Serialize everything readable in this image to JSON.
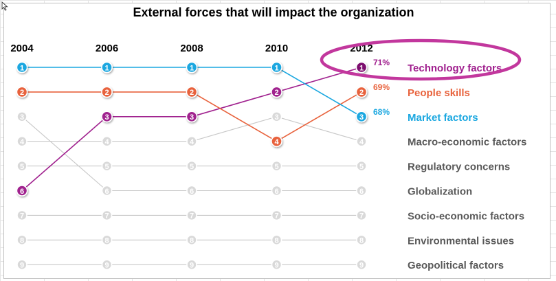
{
  "chart_data": {
    "type": "slope-ranking",
    "title": "External forces that will impact the organization",
    "years": [
      "2004",
      "2006",
      "2008",
      "2010",
      "2012"
    ],
    "rank_range": [
      1,
      9
    ],
    "series": [
      {
        "name": "Technology factors",
        "ranks": [
          6,
          3,
          3,
          2,
          1
        ],
        "value_2012": "71%",
        "color": "#a0208e",
        "highlight": true
      },
      {
        "name": "People skills",
        "ranks": [
          2,
          2,
          2,
          4,
          2
        ],
        "value_2012": "69%",
        "color": "#e8623c",
        "highlight": true
      },
      {
        "name": "Market factors",
        "ranks": [
          1,
          1,
          1,
          1,
          3
        ],
        "value_2012": "68%",
        "color": "#1aa7e0",
        "highlight": true
      },
      {
        "name": "Macro-economic factors",
        "ranks": [
          4,
          4,
          4,
          3,
          4
        ],
        "value_2012": "",
        "color": "#c8c8c8",
        "highlight": false
      },
      {
        "name": "Regulatory concerns",
        "ranks": [
          5,
          5,
          5,
          5,
          5
        ],
        "value_2012": "",
        "color": "#c8c8c8",
        "highlight": false
      },
      {
        "name": "Globalization",
        "ranks": [
          3,
          6,
          6,
          6,
          6
        ],
        "value_2012": "",
        "color": "#c8c8c8",
        "highlight": false
      },
      {
        "name": "Socio-economic factors",
        "ranks": [
          7,
          7,
          7,
          7,
          7
        ],
        "value_2012": "",
        "color": "#c8c8c8",
        "highlight": false
      },
      {
        "name": "Environmental issues",
        "ranks": [
          8,
          8,
          8,
          8,
          8
        ],
        "value_2012": "",
        "color": "#c8c8c8",
        "highlight": false
      },
      {
        "name": "Geopolitical factors",
        "ranks": [
          9,
          9,
          9,
          9,
          9
        ],
        "value_2012": "",
        "color": "#c8c8c8",
        "highlight": false
      }
    ],
    "grid": false,
    "annotation": "ellipse around the 2012 top-ranked entry",
    "annotation_color": "#c2379d"
  }
}
